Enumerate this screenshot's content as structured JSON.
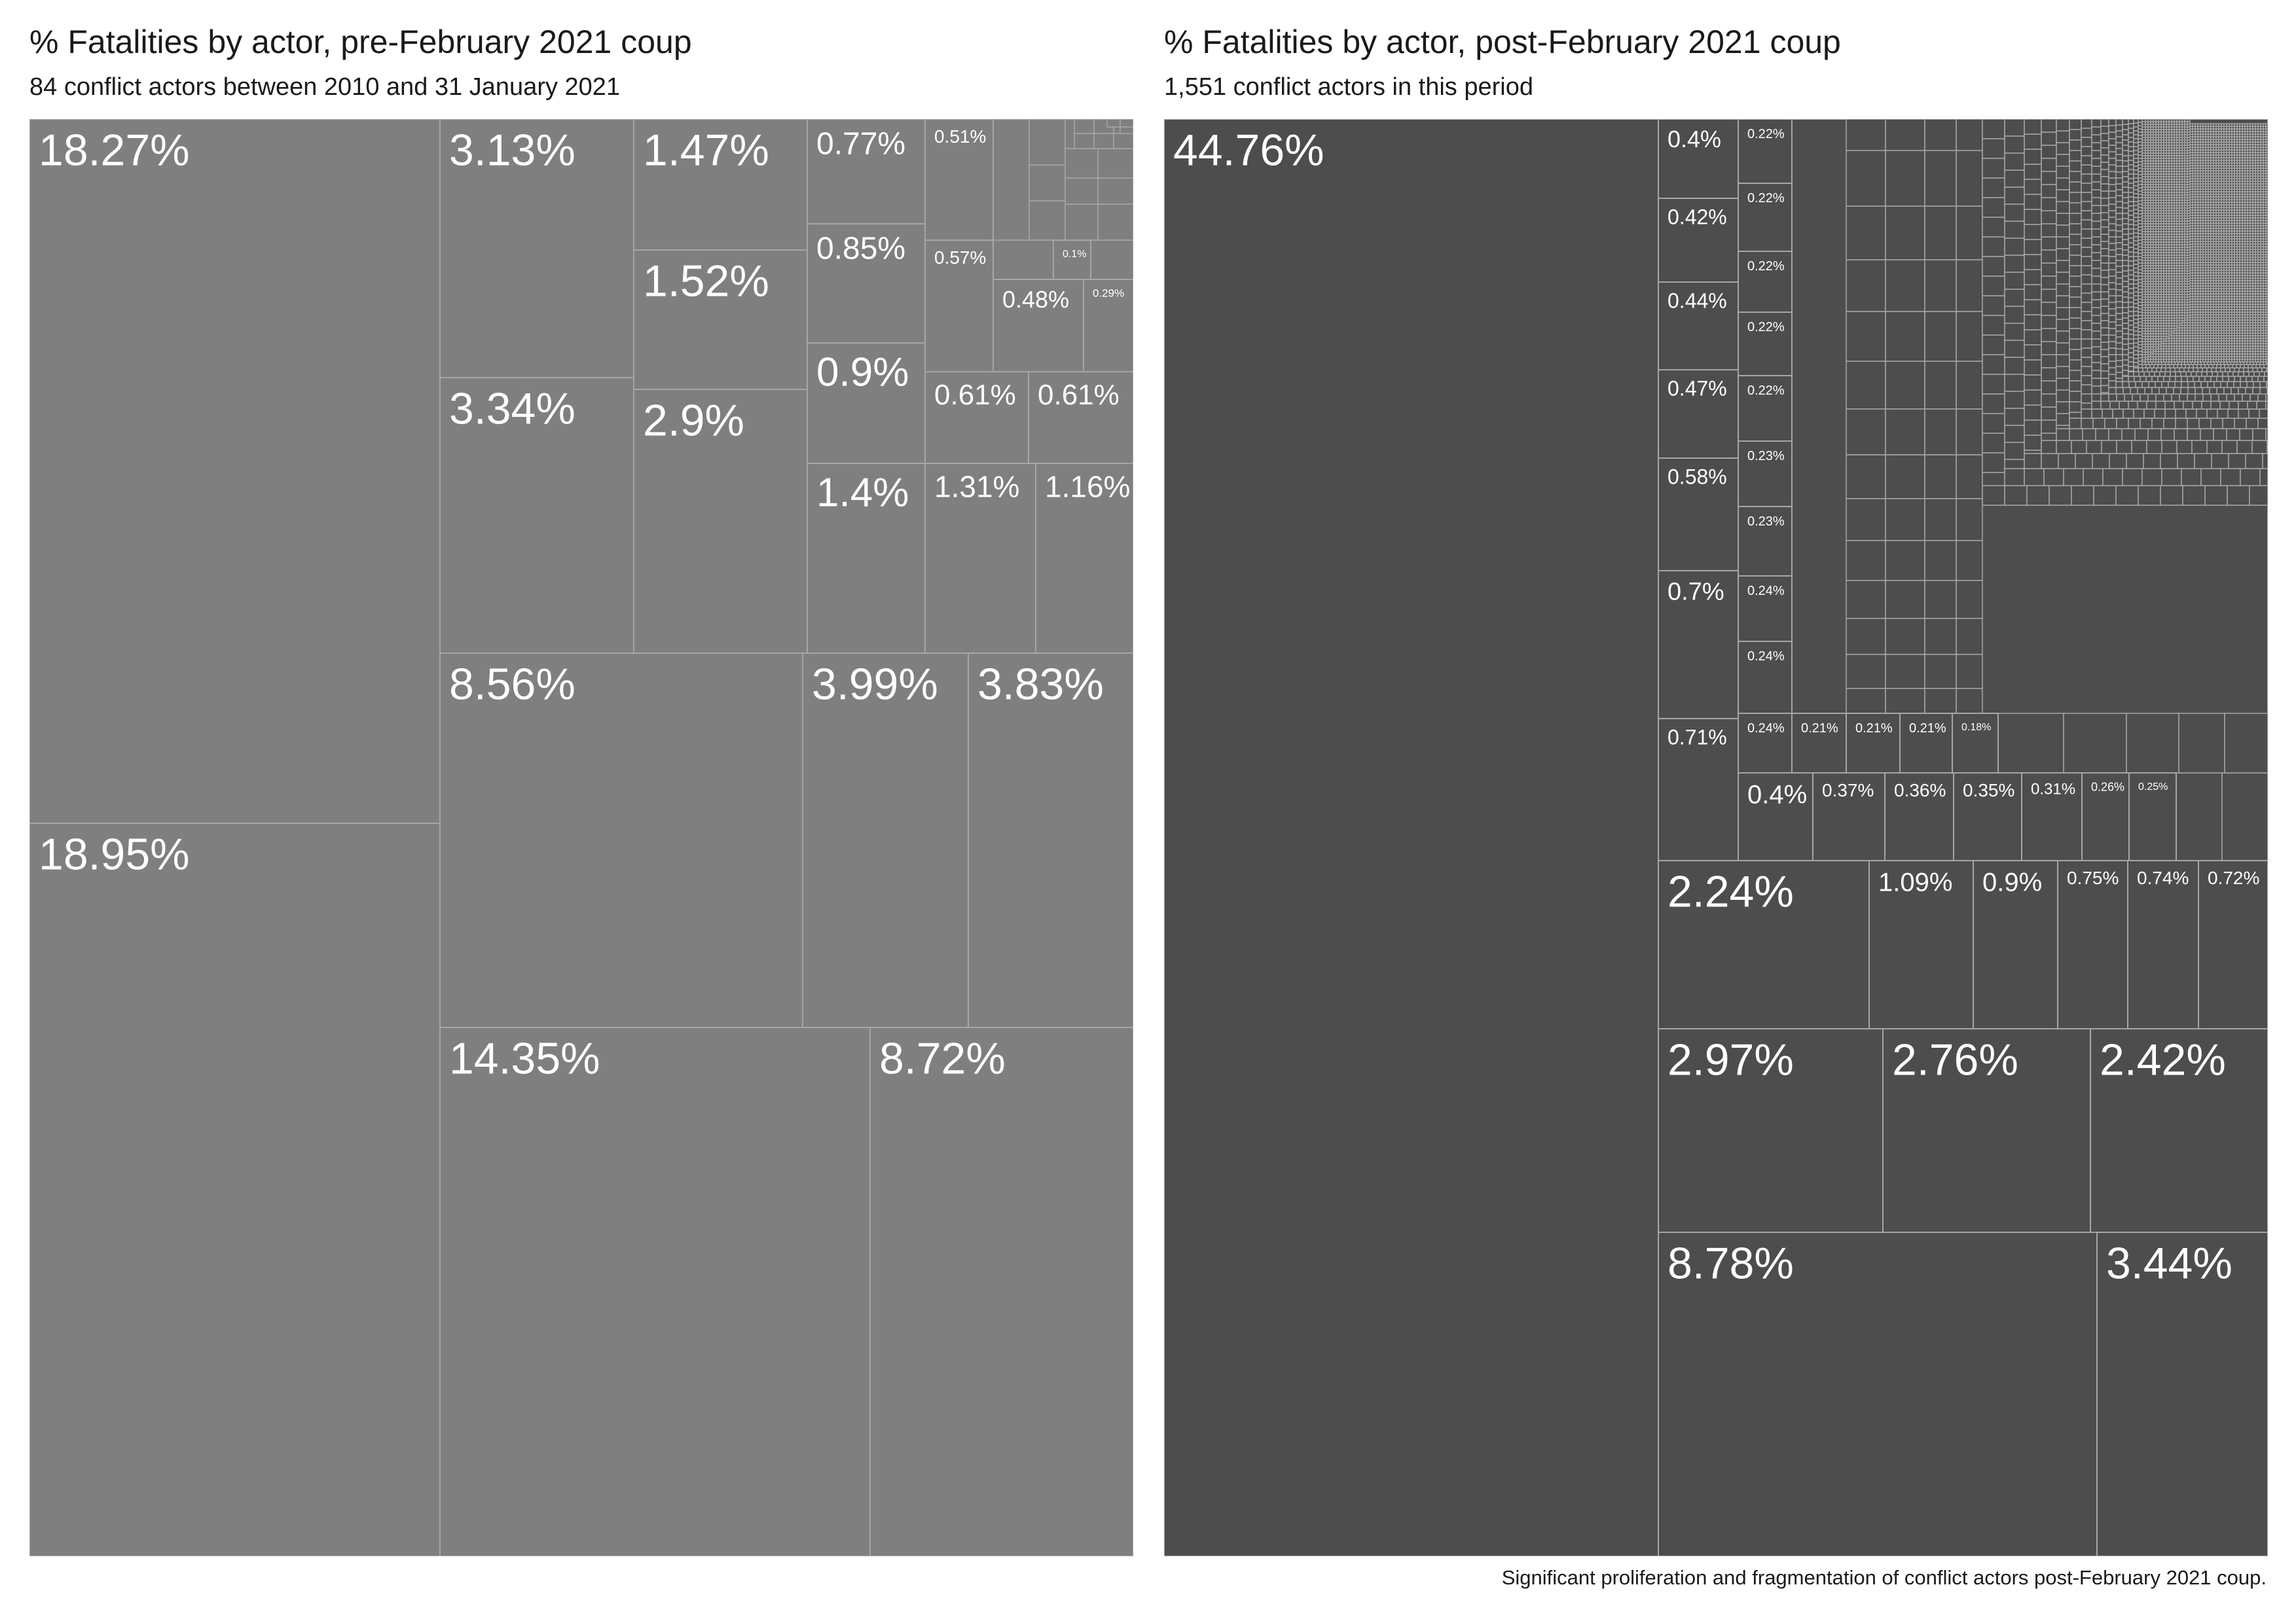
{
  "caption": "Significant proliferation and fragmentation of conflict actors post-February 2021 coup.",
  "colors": {
    "pre_fill": "#7f7f7f",
    "post_fill": "#4d4d4d",
    "line": "#a6a6a6",
    "label": "#ffffff"
  },
  "chart_data": [
    {
      "type": "treemap",
      "title": "% Fatalities by actor, pre-February 2021 coup",
      "subtitle": "84 conflict actors between 2010 and 31 January 2021",
      "values": [
        {
          "label": "18.95%",
          "value": 18.95
        },
        {
          "label": "18.27%",
          "value": 18.27
        },
        {
          "label": "14.35%",
          "value": 14.35
        },
        {
          "label": "8.72%",
          "value": 8.72
        },
        {
          "label": "8.56%",
          "value": 8.56
        },
        {
          "label": "3.99%",
          "value": 3.99
        },
        {
          "label": "3.83%",
          "value": 3.83
        },
        {
          "label": "3.34%",
          "value": 3.34
        },
        {
          "label": "3.13%",
          "value": 3.13
        },
        {
          "label": "2.9%",
          "value": 2.9
        },
        {
          "label": "1.52%",
          "value": 1.52
        },
        {
          "label": "1.47%",
          "value": 1.47
        },
        {
          "label": "1.4%",
          "value": 1.4
        },
        {
          "label": "1.31%",
          "value": 1.31
        },
        {
          "label": "1.16%",
          "value": 1.16
        },
        {
          "label": "0.9%",
          "value": 0.9
        },
        {
          "label": "0.85%",
          "value": 0.85
        },
        {
          "label": "0.77%",
          "value": 0.77
        },
        {
          "label": "0.61%",
          "value": 0.61
        },
        {
          "label": "0.61%",
          "value": 0.61
        },
        {
          "label": "0.57%",
          "value": 0.57
        },
        {
          "label": "0.51%",
          "value": 0.51
        },
        {
          "label": "0.48%",
          "value": 0.48
        },
        {
          "label": "0.29%",
          "value": 0.29
        },
        {
          "label": "0.1%",
          "value": 0.1
        }
      ]
    },
    {
      "type": "treemap",
      "title": "% Fatalities by actor, post-February 2021 coup",
      "subtitle": "1,551 conflict actors in this period",
      "values": [
        {
          "label": "44.76%",
          "value": 44.76
        },
        {
          "label": "8.78%",
          "value": 8.78
        },
        {
          "label": "3.44%",
          "value": 3.44
        },
        {
          "label": "2.97%",
          "value": 2.97
        },
        {
          "label": "2.76%",
          "value": 2.76
        },
        {
          "label": "2.42%",
          "value": 2.42
        },
        {
          "label": "2.24%",
          "value": 2.24
        },
        {
          "label": "1.09%",
          "value": 1.09
        },
        {
          "label": "0.9%",
          "value": 0.9
        },
        {
          "label": "0.75%",
          "value": 0.75
        },
        {
          "label": "0.74%",
          "value": 0.74
        },
        {
          "label": "0.72%",
          "value": 0.72
        },
        {
          "label": "0.71%",
          "value": 0.71
        },
        {
          "label": "0.7%",
          "value": 0.7
        },
        {
          "label": "0.58%",
          "value": 0.58
        },
        {
          "label": "0.47%",
          "value": 0.47
        },
        {
          "label": "0.44%",
          "value": 0.44
        },
        {
          "label": "0.42%",
          "value": 0.42
        },
        {
          "label": "0.4%",
          "value": 0.4
        },
        {
          "label": "0.4%",
          "value": 0.4
        },
        {
          "label": "0.37%",
          "value": 0.37
        },
        {
          "label": "0.36%",
          "value": 0.36
        },
        {
          "label": "0.35%",
          "value": 0.35
        },
        {
          "label": "0.31%",
          "value": 0.31
        },
        {
          "label": "0.26%",
          "value": 0.26
        },
        {
          "label": "0.25%",
          "value": 0.25
        },
        {
          "label": "0.24%",
          "value": 0.24
        },
        {
          "label": "0.24%",
          "value": 0.24
        },
        {
          "label": "0.24%",
          "value": 0.24
        },
        {
          "label": "0.23%",
          "value": 0.23
        },
        {
          "label": "0.23%",
          "value": 0.23
        },
        {
          "label": "0.22%",
          "value": 0.22
        },
        {
          "label": "0.22%",
          "value": 0.22
        },
        {
          "label": "0.22%",
          "value": 0.22
        },
        {
          "label": "0.22%",
          "value": 0.22
        },
        {
          "label": "0.22%",
          "value": 0.22
        },
        {
          "label": "0.21%",
          "value": 0.21
        },
        {
          "label": "0.21%",
          "value": 0.21
        },
        {
          "label": "0.21%",
          "value": 0.21
        },
        {
          "label": "0.18%",
          "value": 0.18
        }
      ]
    }
  ]
}
